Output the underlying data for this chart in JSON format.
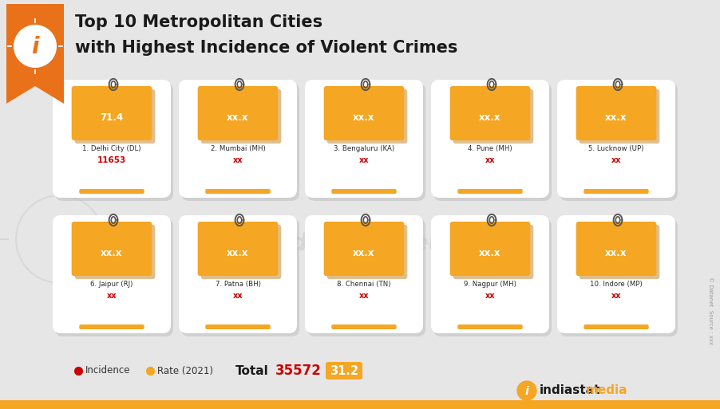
{
  "title_line1": "Top 10 Metropolitan Cities",
  "title_line2": "with Highest Incidence of Violent Crimes",
  "bg_color": "#e6e6e6",
  "card_bg": "#ffffff",
  "sticky_color": "#F5A623",
  "title_color": "#1a1a1a",
  "cities_row1": [
    {
      "rank": "1.",
      "name": "Delhi City (DL)",
      "rate": "71.4",
      "incidence": "11653"
    },
    {
      "rank": "2.",
      "name": "Mumbai (MH)",
      "rate": "xx.x",
      "incidence": "xx"
    },
    {
      "rank": "3.",
      "name": "Bengaluru (KA)",
      "rate": "xx.x",
      "incidence": "xx"
    },
    {
      "rank": "4.",
      "name": "Pune (MH)",
      "rate": "xx.x",
      "incidence": "xx"
    },
    {
      "rank": "5.",
      "name": "Lucknow (UP)",
      "rate": "xx.x",
      "incidence": "xx"
    }
  ],
  "cities_row2": [
    {
      "rank": "6.",
      "name": "Jaipur (RJ)",
      "rate": "xx.x",
      "incidence": "xx"
    },
    {
      "rank": "7.",
      "name": "Patna (BH)",
      "rate": "xx.x",
      "incidence": "xx"
    },
    {
      "rank": "8.",
      "name": "Chennai (TN)",
      "rate": "xx.x",
      "incidence": "xx"
    },
    {
      "rank": "9.",
      "name": "Nagpur (MH)",
      "rate": "xx.x",
      "incidence": "xx"
    },
    {
      "rank": "10.",
      "name": "Indore (MP)",
      "rate": "xx.x",
      "incidence": "xx"
    }
  ],
  "total_label": "Total",
  "total_value": "35572",
  "total_rate": "31.2",
  "legend_incidence": "Incidence",
  "legend_rate": "Rate (2021)",
  "incidence_color": "#cc0000",
  "orange_accent": "#F5A623",
  "banner_color": "#E8711A",
  "watermark_color": "#c8c8c8"
}
